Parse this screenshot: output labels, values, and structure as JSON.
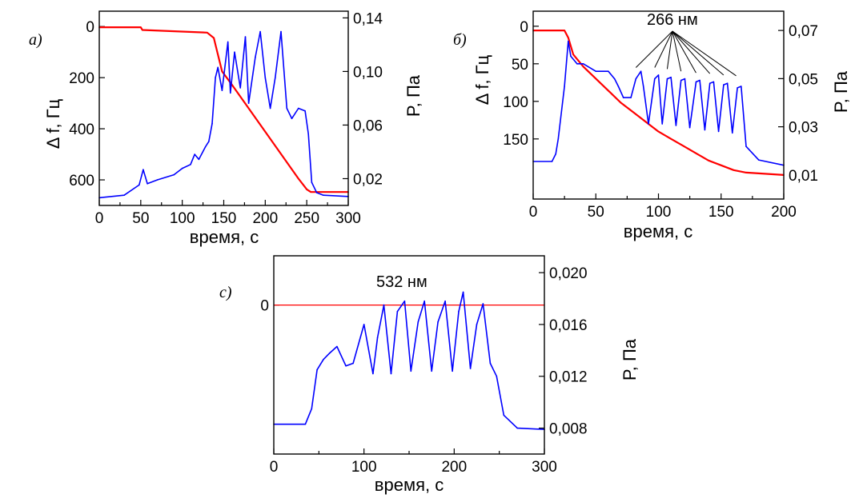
{
  "chart_data": [
    {
      "panel": "a)",
      "type": "line",
      "xlabel": "время, с",
      "ylabel_left": "Δ f, Гц",
      "ylabel_right": "P, Па",
      "xlim": [
        0,
        300
      ],
      "ylim_left": [
        700,
        -60
      ],
      "ylim_right": [
        0.0,
        0.145
      ],
      "x_ticks": [
        "0",
        "50",
        "100",
        "150",
        "200",
        "250",
        "300"
      ],
      "y_left_ticks": [
        "0",
        "200",
        "400",
        "600"
      ],
      "y_right_ticks": [
        "0,14",
        "0,10",
        "0,06",
        "0,02"
      ],
      "series": [
        {
          "axis": "right",
          "color": "#ff0000",
          "x": [
            0,
            50,
            52,
            130,
            138,
            142,
            148,
            160,
            200,
            240,
            250,
            255,
            300
          ],
          "y": [
            0.133,
            0.133,
            0.131,
            0.129,
            0.125,
            0.115,
            0.1,
            0.09,
            0.055,
            0.02,
            0.012,
            0.01,
            0.01
          ]
        },
        {
          "axis": "left",
          "color": "#0000ff",
          "x": [
            0,
            30,
            48,
            53,
            58,
            70,
            90,
            100,
            110,
            115,
            120,
            128,
            132,
            136,
            140,
            143,
            148,
            155,
            158,
            163,
            170,
            176,
            180,
            188,
            194,
            200,
            206,
            212,
            219,
            226,
            232,
            240,
            248,
            252,
            256,
            262,
            270,
            300
          ],
          "y": [
            670,
            660,
            620,
            560,
            615,
            600,
            580,
            555,
            540,
            500,
            520,
            470,
            450,
            380,
            200,
            160,
            250,
            60,
            260,
            100,
            240,
            40,
            300,
            120,
            20,
            200,
            320,
            200,
            20,
            320,
            360,
            320,
            330,
            420,
            610,
            650,
            660,
            665
          ]
        }
      ]
    },
    {
      "panel": "б)",
      "type": "line",
      "xlabel": "время, с",
      "ylabel_left": "Δ f, Гц",
      "ylabel_right": "P, Па",
      "xlim": [
        0,
        200
      ],
      "ylim_left": [
        230,
        -20
      ],
      "ylim_right": [
        0.0,
        0.078
      ],
      "x_ticks": [
        "0",
        "50",
        "100",
        "150",
        "200"
      ],
      "y_left_ticks": [
        "0",
        "50",
        "100",
        "150"
      ],
      "y_right_ticks": [
        "0,07",
        "0,05",
        "0,03",
        "0,01"
      ],
      "annotation": "266 нм",
      "annotation_targets": [
        [
          82,
          55
        ],
        [
          97,
          55
        ],
        [
          107,
          57
        ],
        [
          118,
          60
        ],
        [
          130,
          62
        ],
        [
          141,
          63
        ],
        [
          152,
          65
        ],
        [
          162,
          66
        ]
      ],
      "series": [
        {
          "axis": "right",
          "color": "#ff0000",
          "x": [
            0,
            25,
            28,
            32,
            40,
            50,
            60,
            70,
            80,
            90,
            100,
            110,
            120,
            130,
            140,
            150,
            160,
            170,
            200
          ],
          "y": [
            0.07,
            0.07,
            0.067,
            0.06,
            0.055,
            0.05,
            0.045,
            0.04,
            0.036,
            0.032,
            0.028,
            0.025,
            0.022,
            0.019,
            0.016,
            0.014,
            0.012,
            0.011,
            0.01
          ]
        },
        {
          "axis": "left",
          "color": "#0000ff",
          "x": [
            0,
            15,
            18,
            20,
            25,
            28,
            30,
            35,
            40,
            50,
            60,
            65,
            68,
            72,
            78,
            82,
            86,
            88,
            92,
            97,
            100,
            103,
            107,
            110,
            114,
            118,
            121,
            125,
            130,
            133,
            137,
            141,
            144,
            148,
            152,
            155,
            159,
            163,
            166,
            170,
            180,
            200
          ],
          "y": [
            180,
            180,
            170,
            150,
            80,
            20,
            40,
            50,
            50,
            60,
            60,
            70,
            80,
            95,
            95,
            70,
            60,
            80,
            130,
            70,
            65,
            130,
            70,
            68,
            132,
            72,
            70,
            135,
            74,
            72,
            138,
            76,
            74,
            140,
            78,
            76,
            142,
            82,
            80,
            160,
            178,
            185
          ]
        }
      ]
    },
    {
      "panel": "с)",
      "type": "line",
      "xlabel": "время, с",
      "ylabel_right": "P, Па",
      "xlim": [
        0,
        300
      ],
      "ylim_right": [
        0.006,
        0.0213
      ],
      "x_ticks": [
        "0",
        "100",
        "200",
        "300"
      ],
      "y_left_ticks": [
        "0"
      ],
      "y_right_ticks": [
        "0,020",
        "0,016",
        "0,012",
        "0,008"
      ],
      "annotation": "532 нм",
      "zero_line_value": 0.0175,
      "series": [
        {
          "axis": "right",
          "color": "#0000ff",
          "x": [
            0,
            35,
            42,
            48,
            55,
            62,
            70,
            80,
            88,
            100,
            110,
            115,
            122,
            130,
            137,
            145,
            152,
            160,
            167,
            175,
            182,
            190,
            198,
            205,
            210,
            218,
            225,
            232,
            240,
            247,
            255,
            270,
            300
          ],
          "y": [
            0.0083,
            0.0083,
            0.0095,
            0.0125,
            0.0133,
            0.0138,
            0.0143,
            0.0128,
            0.013,
            0.016,
            0.0122,
            0.015,
            0.0175,
            0.0122,
            0.017,
            0.0178,
            0.0124,
            0.0162,
            0.0178,
            0.0124,
            0.0162,
            0.0178,
            0.0124,
            0.017,
            0.0185,
            0.0126,
            0.016,
            0.0176,
            0.013,
            0.012,
            0.009,
            0.008,
            0.0079
          ]
        }
      ]
    }
  ]
}
